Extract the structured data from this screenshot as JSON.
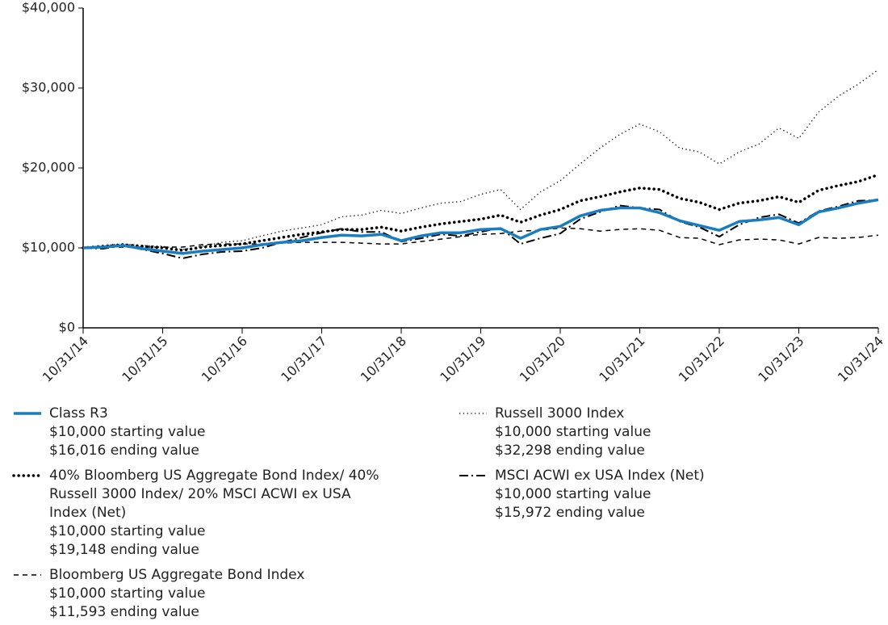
{
  "chart_data": {
    "type": "line",
    "categories": [
      "10/31/14",
      null,
      null,
      null,
      "10/31/15",
      null,
      null,
      null,
      "10/31/16",
      null,
      null,
      null,
      "10/31/17",
      null,
      null,
      null,
      "10/31/18",
      null,
      null,
      null,
      "10/31/19",
      null,
      null,
      null,
      "10/31/20",
      null,
      null,
      null,
      "10/31/21",
      null,
      null,
      null,
      "10/31/22",
      null,
      null,
      null,
      "10/31/23",
      null,
      null,
      null,
      "10/31/24"
    ],
    "ylim": [
      0,
      40000
    ],
    "yticks": [
      {
        "value": 0,
        "label": "$0"
      },
      {
        "value": 10000,
        "label": "$10,000"
      },
      {
        "value": 20000,
        "label": "$20,000"
      },
      {
        "value": 30000,
        "label": "$30,000"
      },
      {
        "value": 40000,
        "label": "$40,000"
      }
    ],
    "series": [
      {
        "name": "Class R3",
        "color": "#1a7dc0",
        "line_style": "solid",
        "legend_lines": [
          "$10,000 starting value",
          "$16,016 ending value"
        ],
        "values": [
          10000,
          10100,
          10300,
          9900,
          9600,
          9300,
          9600,
          9800,
          10000,
          10400,
          10700,
          10900,
          11300,
          11600,
          11500,
          11700,
          10900,
          11500,
          11900,
          11900,
          12300,
          12400,
          11200,
          12300,
          12700,
          14000,
          14700,
          15000,
          15000,
          14400,
          13400,
          12800,
          12200,
          13300,
          13500,
          13800,
          12900,
          14500,
          15000,
          15600,
          16016
        ]
      },
      {
        "name": "Russell 3000 Index",
        "color": "#000000",
        "line_style": "dotted",
        "legend_lines": [
          "$10,000 starting value",
          "$32,298 ending value"
        ],
        "values": [
          10000,
          10300,
          10500,
          10300,
          10200,
          9800,
          10200,
          10700,
          10900,
          11500,
          12100,
          12500,
          12900,
          13900,
          14100,
          14700,
          14300,
          15000,
          15600,
          15800,
          16700,
          17300,
          14800,
          17000,
          18400,
          20500,
          22500,
          24200,
          25500,
          24500,
          22500,
          22000,
          20500,
          22000,
          23000,
          25000,
          23700,
          27000,
          29000,
          30500,
          32298
        ]
      },
      {
        "name": "40% Bloomberg US Aggregate Bond Index/ 40% Russell 3000 Index/ 20% MSCI ACWI ex USA Index (Net)",
        "color": "#000000",
        "line_style": "bold-dotted",
        "legend_lines": [
          "$10,000 starting value",
          "$19,148 ending value"
        ],
        "values": [
          10000,
          10200,
          10400,
          10200,
          10000,
          9700,
          10100,
          10300,
          10500,
          10900,
          11300,
          11700,
          12000,
          12300,
          12300,
          12600,
          12100,
          12600,
          13000,
          13300,
          13600,
          14100,
          13200,
          14100,
          14800,
          15900,
          16400,
          17000,
          17500,
          17300,
          16200,
          15700,
          14800,
          15600,
          15900,
          16400,
          15700,
          17200,
          17800,
          18300,
          19148
        ]
      },
      {
        "name": "MSCI ACWI ex USA Index (Net)",
        "color": "#000000",
        "line_style": "dash-dot",
        "legend_lines": [
          "$10,000 starting value",
          "$15,972 ending value"
        ],
        "values": [
          10000,
          9900,
          10300,
          9800,
          9300,
          8700,
          9200,
          9500,
          9600,
          10000,
          10700,
          11300,
          11900,
          12400,
          12000,
          12000,
          10800,
          11200,
          11700,
          11500,
          12000,
          12500,
          10500,
          11200,
          11800,
          13600,
          14500,
          15300,
          15000,
          14800,
          13300,
          12600,
          11400,
          12900,
          13800,
          14200,
          13100,
          14600,
          15200,
          15900,
          15972
        ]
      },
      {
        "name": "Bloomberg US Aggregate Bond Index",
        "color": "#000000",
        "line_style": "dashed",
        "legend_lines": [
          "$10,000 starting value",
          "$11,593 ending value"
        ],
        "values": [
          10000,
          10100,
          10100,
          10100,
          10100,
          10100,
          10400,
          10500,
          10500,
          10500,
          10600,
          10700,
          10700,
          10700,
          10600,
          10500,
          10500,
          10800,
          11100,
          11400,
          11700,
          11800,
          12100,
          12200,
          12500,
          12400,
          12100,
          12300,
          12400,
          12200,
          11300,
          11200,
          10400,
          11000,
          11100,
          11000,
          10500,
          11300,
          11200,
          11300,
          11593
        ]
      }
    ]
  }
}
